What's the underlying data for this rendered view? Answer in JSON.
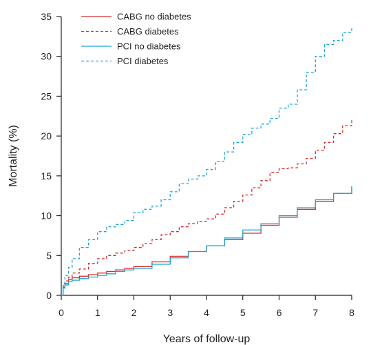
{
  "chart_data": {
    "type": "line",
    "title": "",
    "xlabel": "Years of follow-up",
    "ylabel": "Mortality (%)",
    "xlim": [
      0,
      8
    ],
    "ylim": [
      0,
      35
    ],
    "xticks": [
      0,
      1,
      2,
      3,
      4,
      5,
      6,
      7,
      8
    ],
    "yticks": [
      0,
      5,
      10,
      15,
      20,
      25,
      30,
      35
    ],
    "grid": false,
    "legend_position": "top-left",
    "series": [
      {
        "name": "CABG no diabetes",
        "color": "#d62d2d",
        "dash": "solid",
        "x": [
          0,
          0.05,
          0.1,
          0.2,
          0.3,
          0.5,
          0.75,
          1,
          1.25,
          1.5,
          1.75,
          2,
          2.5,
          3,
          3.5,
          4,
          4.5,
          5,
          5.5,
          6,
          6.5,
          7,
          7.5,
          8
        ],
        "y": [
          0,
          1.0,
          1.5,
          2.0,
          2.2,
          2.4,
          2.6,
          2.8,
          3.0,
          3.2,
          3.4,
          3.6,
          4.2,
          4.9,
          5.5,
          6.2,
          7.0,
          7.8,
          8.8,
          9.8,
          10.8,
          11.8,
          12.8,
          13.6
        ]
      },
      {
        "name": "CABG diabetes",
        "color": "#d62d2d",
        "dash": "dashed",
        "x": [
          0,
          0.05,
          0.1,
          0.2,
          0.3,
          0.5,
          0.75,
          1,
          1.25,
          1.5,
          1.75,
          2,
          2.25,
          2.5,
          2.75,
          3,
          3.25,
          3.5,
          3.75,
          4,
          4.25,
          4.5,
          4.75,
          5,
          5.25,
          5.5,
          5.75,
          6,
          6.25,
          6.5,
          6.75,
          7,
          7.25,
          7.5,
          7.75,
          8
        ],
        "y": [
          0,
          1.2,
          1.8,
          2.3,
          2.8,
          3.3,
          4.0,
          4.6,
          5.0,
          5.3,
          5.6,
          6.0,
          6.5,
          7.0,
          7.6,
          8.0,
          8.6,
          9.0,
          9.3,
          9.6,
          10.2,
          11.0,
          11.8,
          12.6,
          13.5,
          14.4,
          15.4,
          15.9,
          16.0,
          16.5,
          17.2,
          18.2,
          19.2,
          20.3,
          21.3,
          22.0
        ]
      },
      {
        "name": "PCI no diabetes",
        "color": "#1ba6d6",
        "dash": "solid",
        "x": [
          0,
          0.05,
          0.1,
          0.2,
          0.3,
          0.5,
          0.75,
          1,
          1.25,
          1.5,
          1.75,
          2,
          2.5,
          3,
          3.5,
          4,
          4.5,
          5,
          5.5,
          6,
          6.5,
          7,
          7.5,
          8
        ],
        "y": [
          0,
          0.9,
          1.3,
          1.7,
          1.9,
          2.1,
          2.3,
          2.5,
          2.7,
          3.0,
          3.2,
          3.4,
          3.9,
          4.7,
          5.5,
          6.2,
          7.2,
          8.2,
          9.0,
          10.0,
          11.0,
          12.0,
          12.8,
          13.7
        ]
      },
      {
        "name": "PCI diabetes",
        "color": "#1ba6d6",
        "dash": "dashed",
        "x": [
          0,
          0.05,
          0.1,
          0.2,
          0.3,
          0.5,
          0.75,
          1,
          1.25,
          1.5,
          1.75,
          2,
          2.25,
          2.5,
          2.75,
          3,
          3.25,
          3.5,
          3.75,
          4,
          4.25,
          4.5,
          4.75,
          5,
          5.25,
          5.5,
          5.75,
          6,
          6.25,
          6.5,
          6.75,
          7,
          7.25,
          7.5,
          7.75,
          8
        ],
        "y": [
          0,
          1.5,
          2.5,
          3.5,
          4.6,
          6.0,
          7.0,
          8.0,
          8.6,
          8.9,
          9.4,
          10.4,
          10.8,
          11.2,
          12.0,
          13.0,
          14.0,
          14.6,
          15.0,
          15.8,
          16.8,
          18.0,
          19.2,
          20.2,
          21.0,
          21.5,
          22.2,
          23.5,
          24.0,
          25.8,
          28.0,
          30.0,
          31.5,
          32.0,
          33.0,
          33.7
        ]
      }
    ]
  }
}
